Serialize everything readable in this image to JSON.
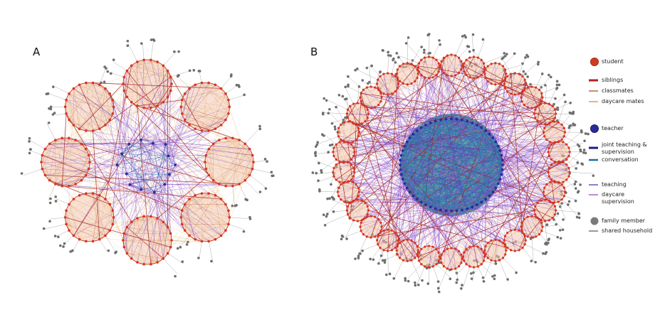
{
  "panels": [
    {
      "label": "A"
    },
    {
      "label": "B"
    }
  ],
  "legend": {
    "items": [
      {
        "label": "student"
      },
      {
        "label": "siblings"
      },
      {
        "label": "classmates"
      },
      {
        "label": "daycare mates"
      },
      {
        "label": "teacher"
      },
      {
        "label": "joint teaching & supervision"
      },
      {
        "label": "conversation"
      },
      {
        "label": "teaching"
      },
      {
        "label": "daycare supervision"
      },
      {
        "label": "family member"
      },
      {
        "label": "shared household"
      }
    ]
  }
}
